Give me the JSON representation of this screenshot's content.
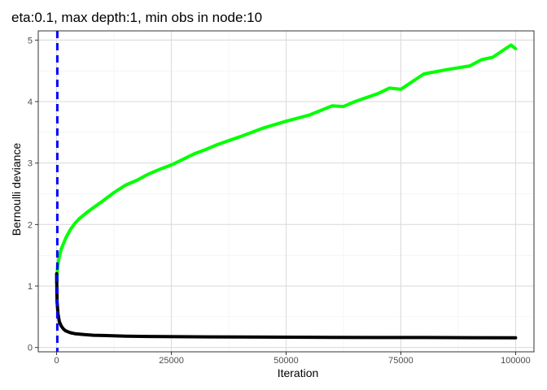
{
  "chart_data": {
    "type": "line",
    "title": "eta:0.1, max depth:1, min obs in node:10",
    "xlabel": "Iteration",
    "ylabel": "Bernoulli deviance",
    "xlim": [
      -4000,
      104000
    ],
    "ylim": [
      -0.07,
      5.15
    ],
    "xticks": [
      0,
      25000,
      50000,
      75000,
      100000
    ],
    "xtick_labels": [
      "0",
      "25000",
      "50000",
      "75000",
      "100000"
    ],
    "yticks": [
      0,
      1,
      2,
      3,
      4,
      5
    ],
    "ytick_labels": [
      "0",
      "1",
      "2",
      "3",
      "4",
      "5"
    ],
    "grid": true,
    "series": [
      {
        "color": "#00ff00",
        "style": "solid",
        "x": [
          0,
          200,
          500,
          1000,
          2000,
          3000,
          4000,
          5000,
          7000,
          10000,
          12500,
          15000,
          17500,
          20000,
          22500,
          25000,
          30000,
          32500,
          35000,
          40000,
          45000,
          50000,
          55000,
          60000,
          62500,
          65000,
          70000,
          72500,
          75000,
          80000,
          85000,
          90000,
          92500,
          95000,
          99000,
          100000
        ],
        "y": [
          1.05,
          1.3,
          1.45,
          1.6,
          1.78,
          1.92,
          2.02,
          2.1,
          2.22,
          2.38,
          2.52,
          2.64,
          2.72,
          2.82,
          2.9,
          2.97,
          3.15,
          3.22,
          3.3,
          3.43,
          3.57,
          3.68,
          3.78,
          3.93,
          3.92,
          4.0,
          4.13,
          4.22,
          4.2,
          4.45,
          4.52,
          4.58,
          4.68,
          4.72,
          4.92,
          4.86
        ]
      },
      {
        "color": "#000000",
        "style": "solid",
        "x": [
          0,
          100,
          300,
          600,
          1000,
          1500,
          2000,
          3000,
          4000,
          6000,
          8000,
          10000,
          15000,
          20000,
          30000,
          40000,
          50000,
          60000,
          70000,
          80000,
          90000,
          100000
        ],
        "y": [
          1.2,
          0.75,
          0.55,
          0.42,
          0.35,
          0.3,
          0.27,
          0.24,
          0.225,
          0.21,
          0.2,
          0.195,
          0.185,
          0.18,
          0.175,
          0.17,
          0.168,
          0.165,
          0.163,
          0.162,
          0.16,
          0.158
        ]
      }
    ],
    "vline": {
      "x": 150,
      "color": "#0000ff",
      "style": "dashed"
    }
  }
}
